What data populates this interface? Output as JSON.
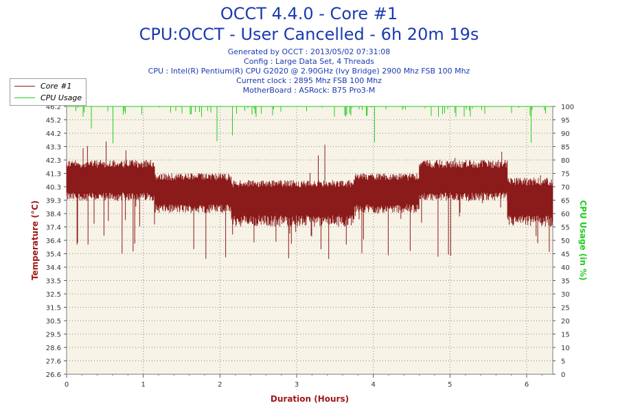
{
  "header": {
    "title_line1": "OCCT 4.4.0 - Core #1",
    "title_line2": "CPU:OCCT - User Cancelled - 6h 20m 19s",
    "info": [
      "Generated by OCCT : 2013/05/02 07:31:08",
      "Config : Large Data Set, 4 Threads",
      "CPU : Intel(R) Pentium(R) CPU G2020 @ 2.90GHz (Ivy Bridge) 2900 Mhz FSB 100 Mhz",
      "Current clock : 2895 Mhz FSB 100 Mhz",
      "MotherBoard : ASRock: B75 Pro3-M"
    ]
  },
  "legend": {
    "items": [
      {
        "label": "Core #1",
        "color": "#8b1a1a"
      },
      {
        "label": "CPU Usage",
        "color": "#22cc22"
      }
    ]
  },
  "chart_data": {
    "type": "line",
    "xlabel": "Duration (Hours)",
    "ylabel_left": "Temperature (°C)",
    "ylabel_right": "CPU Usage (in %)",
    "x_range": [
      0,
      6.34
    ],
    "x_ticks": [
      0,
      1,
      2,
      3,
      4,
      5,
      6
    ],
    "y_left_range": [
      26.6,
      46.2
    ],
    "y_left_ticks": [
      "26.6",
      "27.6",
      "28.6",
      "29.5",
      "30.5",
      "31.5",
      "32.5",
      "33.5",
      "34.4",
      "35.4",
      "36.4",
      "37.4",
      "38.4",
      "39.3",
      "40.3",
      "41.3",
      "42.3",
      "43.3",
      "44.2",
      "45.2",
      "46.2"
    ],
    "y_right_range": [
      0,
      100
    ],
    "y_right_ticks": [
      "0",
      "5",
      "10",
      "15",
      "20",
      "25",
      "30",
      "35",
      "40",
      "45",
      "50",
      "55",
      "60",
      "65",
      "70",
      "75",
      "80",
      "85",
      "90",
      "95",
      "100"
    ],
    "grid": true,
    "plot_background": "#f7f3e6",
    "series": [
      {
        "name": "Core #1",
        "axis": "left",
        "color": "#8b1a1a",
        "segments": [
          {
            "x": [
              0.0,
              1.15
            ],
            "low": 39.3,
            "high": 42.3,
            "typical": 40.8
          },
          {
            "x": [
              1.15,
              2.15
            ],
            "low": 38.4,
            "high": 41.3,
            "typical": 40.0
          },
          {
            "x": [
              2.15,
              3.75
            ],
            "low": 37.4,
            "high": 40.8,
            "typical": 39.5
          },
          {
            "x": [
              3.75,
              4.6
            ],
            "low": 38.4,
            "high": 41.3,
            "typical": 40.0
          },
          {
            "x": [
              4.6,
              5.75
            ],
            "low": 39.3,
            "high": 42.3,
            "typical": 40.8
          },
          {
            "x": [
              5.75,
              6.34
            ],
            "low": 37.4,
            "high": 41.0,
            "typical": 39.5
          }
        ],
        "occasional_min": 35.0,
        "occasional_max": 44.0
      },
      {
        "name": "CPU Usage",
        "axis": "right",
        "color": "#22cc22",
        "typical": 100,
        "occasional_min": 85
      }
    ]
  }
}
